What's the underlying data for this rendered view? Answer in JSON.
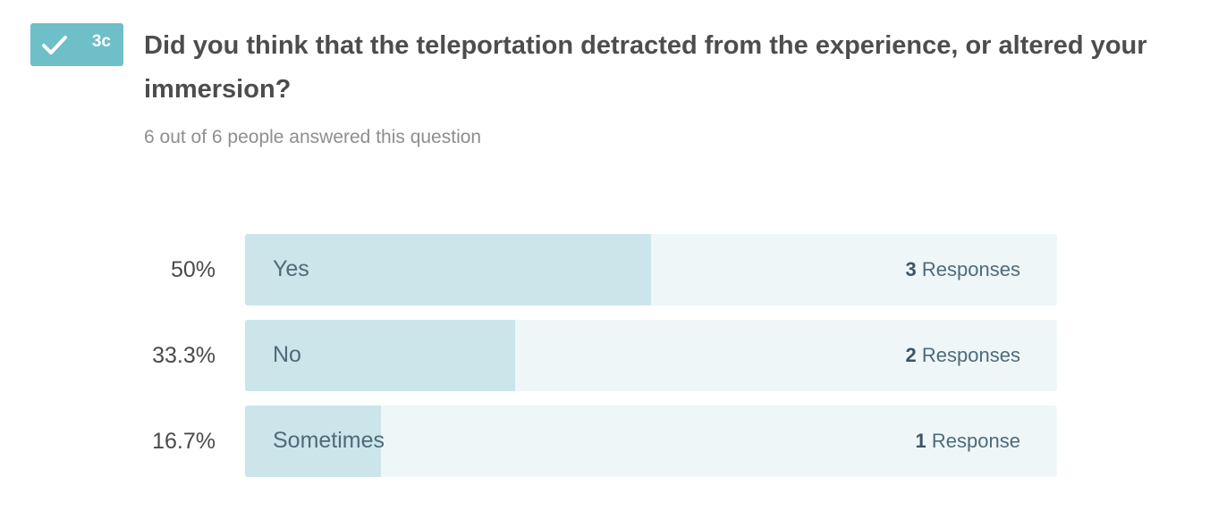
{
  "badge": {
    "icon": "check-icon",
    "number": "3c",
    "color": "#6ebfc7"
  },
  "question": {
    "text": "Did you think that the teleportation detracted from the experience, or altered your immersion?",
    "answered": "6 out of 6 people answered this question"
  },
  "chart_data": {
    "type": "bar",
    "orientation": "horizontal",
    "categories": [
      "Yes",
      "No",
      "Sometimes"
    ],
    "values": [
      3,
      2,
      1
    ],
    "percent_labels": [
      "50%",
      "33.3%",
      "16.7%"
    ],
    "percents": [
      50,
      33.3,
      16.7
    ],
    "counts": [
      "3",
      "2",
      "1"
    ],
    "count_units": [
      "Responses",
      "Responses",
      "Response"
    ],
    "colors": {
      "fill": "#cbe5ea",
      "track": "#eef6f8"
    }
  }
}
